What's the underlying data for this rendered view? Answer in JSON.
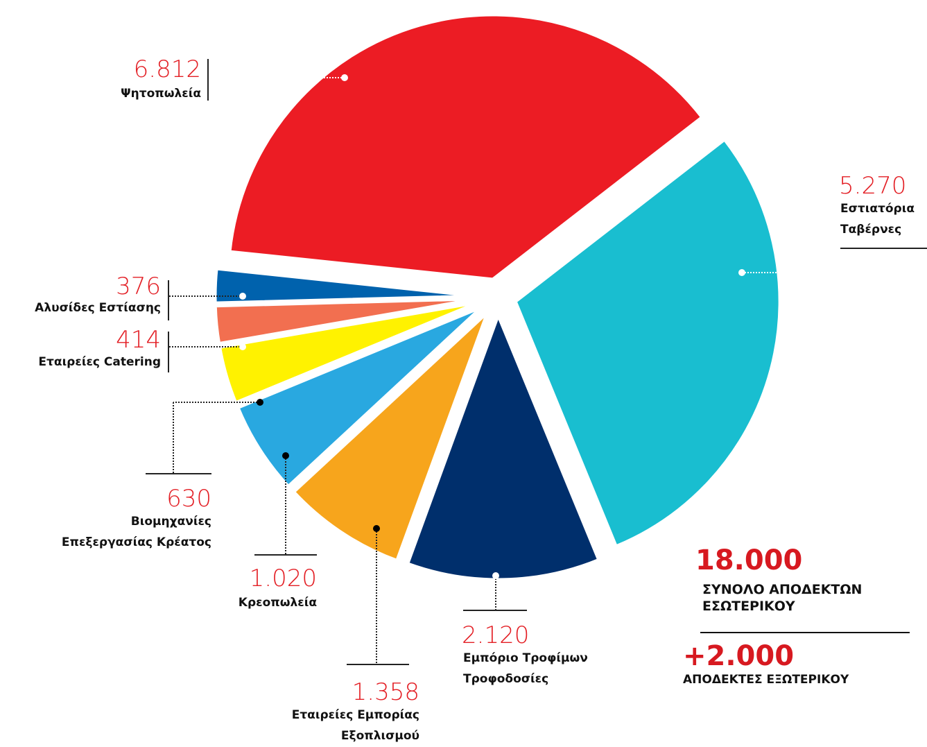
{
  "chart_data": {
    "type": "pie",
    "categories": [
      "Ψητοπωλεία",
      "Εστιατόρια\nΤαβέρνες",
      "Εμπόριο Τροφίμων\nΤροφοδοσίες",
      "Εταιρείες Εμπορίας\nΕξοπλισμού",
      "Κρεοπωλεία",
      "Βιομηχανίες\nΕπεξεργασίας Κρέατος",
      "Εταιρείες Catering",
      "Αλυσίδες Εστίασης"
    ],
    "values": [
      6812,
      5270,
      2120,
      1358,
      1020,
      630,
      414,
      376
    ],
    "value_labels": [
      "6.812",
      "5.270",
      "2.120",
      "1.358",
      "1.020",
      "630",
      "414",
      "376"
    ],
    "colors": [
      "#ec1c24",
      "#19bed0",
      "#002f6c",
      "#f7a51c",
      "#29a8e0",
      "#fff200",
      "#f26f50",
      "#0062ad"
    ],
    "annotations": [
      {
        "value_label": "18.000",
        "label": "ΣΥΝΟΛΟ ΑΠΟΔΕΚΤΩΝ\nΕΣΩΤΕΡΙΚΟΥ"
      },
      {
        "value_label": "+2.000",
        "label": "ΑΠΟΔΕΚΤΕΣ ΕΞΩΤΕΡΙΚΟΥ"
      }
    ]
  }
}
